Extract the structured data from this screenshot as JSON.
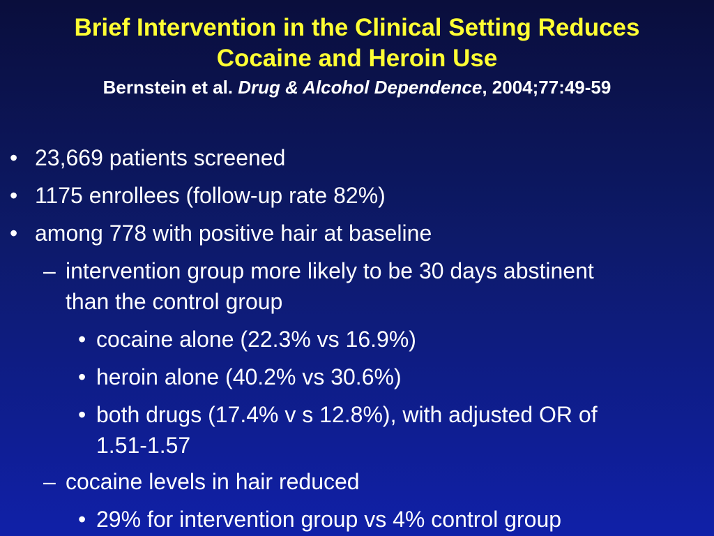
{
  "slide": {
    "title_line1": "Brief Intervention in the Clinical Setting Reduces",
    "title_line2": "Cocaine and Heroin Use",
    "citation": {
      "authors": "Bernstein et al. ",
      "journal": "Drug & Alcohol Dependence",
      "ref": ", 2004;77:49-59"
    },
    "bullets": {
      "b1": {
        "marker": "•",
        "text": "23,669 patients screened"
      },
      "b2": {
        "marker": "•",
        "text": "1175 enrollees (follow-up rate 82%)"
      },
      "b3": {
        "marker": "•",
        "text": "among 778 with positive hair at baseline"
      },
      "s1": {
        "marker": "–",
        "line1": "intervention group more likely to be 30 days abstinent",
        "line2": "than the control group"
      },
      "t1": {
        "marker": "•",
        "text": "cocaine alone (22.3% vs 16.9%)"
      },
      "t2": {
        "marker": "•",
        "text": "heroin alone (40.2% vs 30.6%)"
      },
      "t3": {
        "marker": "•",
        "line1": "both drugs (17.4% v s 12.8%), with adjusted OR of",
        "line2": "1.51-1.57"
      },
      "s2": {
        "marker": "–",
        "text": "cocaine levels in hair reduced"
      },
      "t4": {
        "marker": "•",
        "text": "29% for intervention group vs 4% control group"
      }
    }
  }
}
